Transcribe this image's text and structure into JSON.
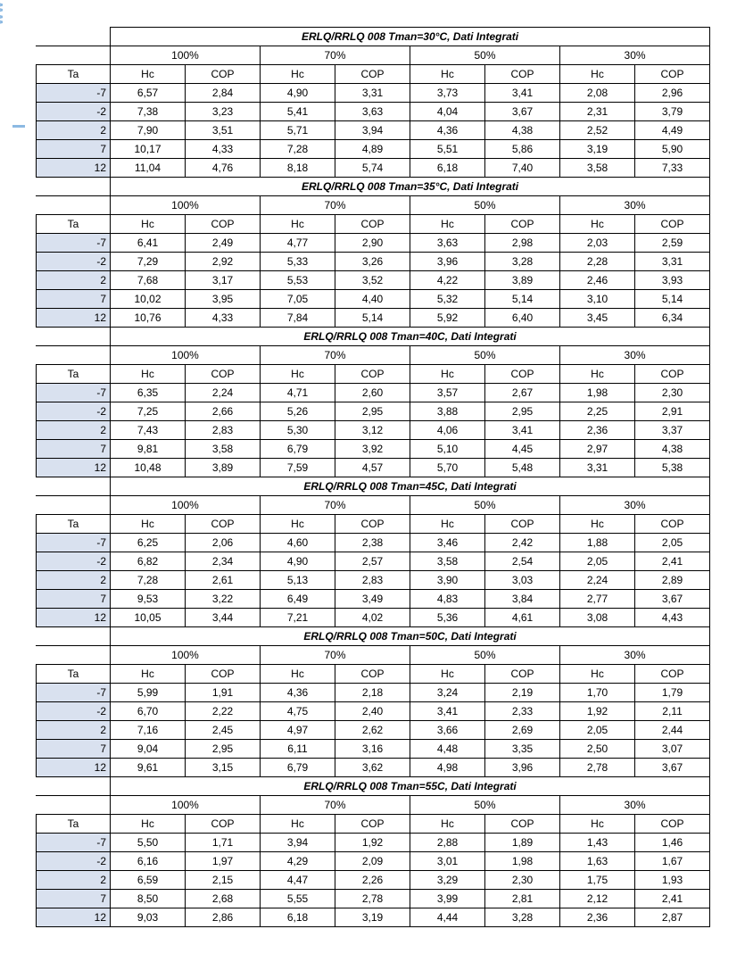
{
  "watermark": {
    "text": "www.da"
  },
  "labels": {
    "ta": "Ta",
    "hc": "Hc",
    "cop": "COP"
  },
  "percent_headers": [
    "100%",
    "70%",
    "50%",
    "30%"
  ],
  "blocks": [
    {
      "title": "ERLQ/RRLQ 008 Tman=30°C, Dati Integrati",
      "rows": [
        {
          "ta": "-7",
          "v": [
            "6,57",
            "2,84",
            "4,90",
            "3,31",
            "3,73",
            "3,41",
            "2,08",
            "2,96"
          ]
        },
        {
          "ta": "-2",
          "v": [
            "7,38",
            "3,23",
            "5,41",
            "3,63",
            "4,04",
            "3,67",
            "2,31",
            "3,79"
          ]
        },
        {
          "ta": "2",
          "v": [
            "7,90",
            "3,51",
            "5,71",
            "3,94",
            "4,36",
            "4,38",
            "2,52",
            "4,49"
          ]
        },
        {
          "ta": "7",
          "v": [
            "10,17",
            "4,33",
            "7,28",
            "4,89",
            "5,51",
            "5,86",
            "3,19",
            "5,90"
          ]
        },
        {
          "ta": "12",
          "v": [
            "11,04",
            "4,76",
            "8,18",
            "5,74",
            "6,18",
            "7,40",
            "3,58",
            "7,33"
          ]
        }
      ]
    },
    {
      "title": "ERLQ/RRLQ 008 Tman=35°C, Dati Integrati",
      "rows": [
        {
          "ta": "-7",
          "v": [
            "6,41",
            "2,49",
            "4,77",
            "2,90",
            "3,63",
            "2,98",
            "2,03",
            "2,59"
          ]
        },
        {
          "ta": "-2",
          "v": [
            "7,29",
            "2,92",
            "5,33",
            "3,26",
            "3,96",
            "3,28",
            "2,28",
            "3,31"
          ]
        },
        {
          "ta": "2",
          "v": [
            "7,68",
            "3,17",
            "5,53",
            "3,52",
            "4,22",
            "3,89",
            "2,46",
            "3,93"
          ]
        },
        {
          "ta": "7",
          "v": [
            "10,02",
            "3,95",
            "7,05",
            "4,40",
            "5,32",
            "5,14",
            "3,10",
            "5,14"
          ]
        },
        {
          "ta": "12",
          "v": [
            "10,76",
            "4,33",
            "7,84",
            "5,14",
            "5,92",
            "6,40",
            "3,45",
            "6,34"
          ]
        }
      ]
    },
    {
      "title": "ERLQ/RRLQ 008 Tman=40C, Dati Integrati",
      "rows": [
        {
          "ta": "-7",
          "v": [
            "6,35",
            "2,24",
            "4,71",
            "2,60",
            "3,57",
            "2,67",
            "1,98",
            "2,30"
          ]
        },
        {
          "ta": "-2",
          "v": [
            "7,25",
            "2,66",
            "5,26",
            "2,95",
            "3,88",
            "2,95",
            "2,25",
            "2,91"
          ]
        },
        {
          "ta": "2",
          "v": [
            "7,43",
            "2,83",
            "5,30",
            "3,12",
            "4,06",
            "3,41",
            "2,36",
            "3,37"
          ]
        },
        {
          "ta": "7",
          "v": [
            "9,81",
            "3,58",
            "6,79",
            "3,92",
            "5,10",
            "4,45",
            "2,97",
            "4,38"
          ]
        },
        {
          "ta": "12",
          "v": [
            "10,48",
            "3,89",
            "7,59",
            "4,57",
            "5,70",
            "5,48",
            "3,31",
            "5,38"
          ]
        }
      ]
    },
    {
      "title": "ERLQ/RRLQ 008 Tman=45C, Dati Integrati",
      "rows": [
        {
          "ta": "-7",
          "v": [
            "6,25",
            "2,06",
            "4,60",
            "2,38",
            "3,46",
            "2,42",
            "1,88",
            "2,05"
          ]
        },
        {
          "ta": "-2",
          "v": [
            "6,82",
            "2,34",
            "4,90",
            "2,57",
            "3,58",
            "2,54",
            "2,05",
            "2,41"
          ]
        },
        {
          "ta": "2",
          "v": [
            "7,28",
            "2,61",
            "5,13",
            "2,83",
            "3,90",
            "3,03",
            "2,24",
            "2,89"
          ]
        },
        {
          "ta": "7",
          "v": [
            "9,53",
            "3,22",
            "6,49",
            "3,49",
            "4,83",
            "3,84",
            "2,77",
            "3,67"
          ]
        },
        {
          "ta": "12",
          "v": [
            "10,05",
            "3,44",
            "7,21",
            "4,02",
            "5,36",
            "4,61",
            "3,08",
            "4,43"
          ]
        }
      ]
    },
    {
      "title": "ERLQ/RRLQ 008 Tman=50C, Dati Integrati",
      "rows": [
        {
          "ta": "-7",
          "v": [
            "5,99",
            "1,91",
            "4,36",
            "2,18",
            "3,24",
            "2,19",
            "1,70",
            "1,79"
          ]
        },
        {
          "ta": "-2",
          "v": [
            "6,70",
            "2,22",
            "4,75",
            "2,40",
            "3,41",
            "2,33",
            "1,92",
            "2,11"
          ]
        },
        {
          "ta": "2",
          "v": [
            "7,16",
            "2,45",
            "4,97",
            "2,62",
            "3,66",
            "2,69",
            "2,05",
            "2,44"
          ]
        },
        {
          "ta": "7",
          "v": [
            "9,04",
            "2,95",
            "6,11",
            "3,16",
            "4,48",
            "3,35",
            "2,50",
            "3,07"
          ]
        },
        {
          "ta": "12",
          "v": [
            "9,61",
            "3,15",
            "6,79",
            "3,62",
            "4,98",
            "3,96",
            "2,78",
            "3,67"
          ]
        }
      ]
    },
    {
      "title": "ERLQ/RRLQ 008 Tman=55C, Dati Integrati",
      "rows": [
        {
          "ta": "-7",
          "v": [
            "5,50",
            "1,71",
            "3,94",
            "1,92",
            "2,88",
            "1,89",
            "1,43",
            "1,46"
          ]
        },
        {
          "ta": "-2",
          "v": [
            "6,16",
            "1,97",
            "4,29",
            "2,09",
            "3,01",
            "1,98",
            "1,63",
            "1,67"
          ]
        },
        {
          "ta": "2",
          "v": [
            "6,59",
            "2,15",
            "4,47",
            "2,26",
            "3,29",
            "2,30",
            "1,75",
            "1,93"
          ]
        },
        {
          "ta": "7",
          "v": [
            "8,50",
            "2,68",
            "5,55",
            "2,78",
            "3,99",
            "2,81",
            "2,12",
            "2,41"
          ]
        },
        {
          "ta": "12",
          "v": [
            "9,03",
            "2,86",
            "6,18",
            "3,19",
            "4,44",
            "3,28",
            "2,36",
            "2,87"
          ]
        }
      ]
    }
  ]
}
